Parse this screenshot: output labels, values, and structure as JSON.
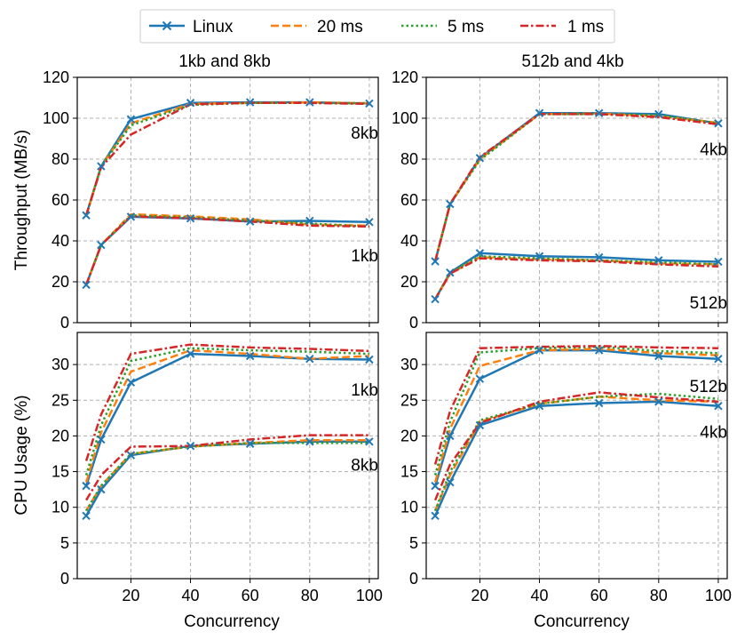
{
  "legend": [
    {
      "name": "Linux",
      "color": "#1f77b4",
      "dash": "solid",
      "marker": "x"
    },
    {
      "name": "20 ms",
      "color": "#ff7f0e",
      "dash": "dashed",
      "marker": "none"
    },
    {
      "name": "5 ms",
      "color": "#2ca02c",
      "dash": "dotted",
      "marker": "none"
    },
    {
      "name": "1 ms",
      "color": "#d62728",
      "dash": "dashdot",
      "marker": "none"
    }
  ],
  "titles": {
    "left": "1kb and 8kb",
    "right": "512b and 4kb"
  },
  "axes": {
    "xlabel": "Concurrency",
    "ylabel_top": "Throughput (MB/s)",
    "ylabel_bottom": "CPU Usage (%)",
    "xticks": [
      20,
      40,
      60,
      80,
      100
    ],
    "xlim": [
      2,
      103
    ],
    "top_ylim": [
      0,
      120
    ],
    "top_yticks": [
      0,
      20,
      40,
      60,
      80,
      100,
      120
    ],
    "bottom_ylim": [
      0,
      34.5
    ],
    "bottom_yticks": [
      0,
      5,
      10,
      15,
      20,
      25,
      30
    ]
  },
  "chart_data": [
    {
      "type": "line",
      "panel": "top-left",
      "title": "1kb and 8kb",
      "xlabel": "",
      "ylabel": "Throughput (MB/s)",
      "x": [
        5,
        10,
        20,
        40,
        60,
        80,
        100
      ],
      "ylim": [
        0,
        120
      ],
      "groups": [
        {
          "label": "8kb",
          "series": [
            {
              "name": "Linux",
              "values": [
                52.5,
                76.5,
                99.5,
                107.5,
                107.8,
                107.8,
                107.2
              ]
            },
            {
              "name": "20 ms",
              "values": [
                52.5,
                76.5,
                97.5,
                107.0,
                107.5,
                107.8,
                107.3
              ]
            },
            {
              "name": "5 ms",
              "values": [
                52.5,
                76.5,
                96.5,
                106.5,
                107.5,
                107.5,
                107.3
              ]
            },
            {
              "name": "1 ms",
              "values": [
                52.5,
                76.0,
                92.0,
                106.8,
                107.5,
                107.5,
                107.0
              ]
            }
          ]
        },
        {
          "label": "1kb",
          "series": [
            {
              "name": "Linux",
              "values": [
                18.5,
                38.0,
                51.8,
                51.0,
                49.5,
                49.8,
                49.2
              ]
            },
            {
              "name": "20 ms",
              "values": [
                18.5,
                38.0,
                53.0,
                52.0,
                50.5,
                48.0,
                47.5
              ]
            },
            {
              "name": "5 ms",
              "values": [
                18.5,
                38.0,
                52.5,
                51.5,
                50.0,
                48.5,
                47.0
              ]
            },
            {
              "name": "1 ms",
              "values": [
                18.5,
                38.0,
                52.0,
                51.0,
                49.5,
                47.5,
                47.0
              ]
            }
          ]
        }
      ],
      "annotations": [
        "8kb",
        "1kb"
      ]
    },
    {
      "type": "line",
      "panel": "top-right",
      "title": "512b and 4kb",
      "xlabel": "",
      "ylabel": "",
      "x": [
        5,
        10,
        20,
        40,
        60,
        80,
        100
      ],
      "ylim": [
        0,
        120
      ],
      "groups": [
        {
          "label": "4kb",
          "series": [
            {
              "name": "Linux",
              "values": [
                30.0,
                58.0,
                80.5,
                102.5,
                102.5,
                102.0,
                97.5
              ]
            },
            {
              "name": "20 ms",
              "values": [
                30.0,
                58.0,
                80.0,
                102.0,
                102.3,
                101.0,
                97.8
              ]
            },
            {
              "name": "5 ms",
              "values": [
                30.0,
                58.0,
                79.5,
                102.0,
                102.0,
                101.5,
                97.5
              ]
            },
            {
              "name": "1 ms",
              "values": [
                30.0,
                58.0,
                81.0,
                102.0,
                102.0,
                100.5,
                97.0
              ]
            }
          ]
        },
        {
          "label": "512b",
          "series": [
            {
              "name": "Linux",
              "values": [
                11.5,
                24.5,
                34.0,
                32.5,
                32.0,
                30.5,
                29.8
              ]
            },
            {
              "name": "20 ms",
              "values": [
                11.5,
                24.0,
                32.0,
                31.0,
                30.5,
                29.0,
                28.5
              ]
            },
            {
              "name": "5 ms",
              "values": [
                11.5,
                24.5,
                32.5,
                31.5,
                30.5,
                29.5,
                28.5
              ]
            },
            {
              "name": "1 ms",
              "values": [
                11.5,
                24.0,
                31.5,
                30.5,
                30.0,
                28.5,
                27.5
              ]
            }
          ]
        }
      ],
      "annotations": [
        "4kb",
        "512b"
      ]
    },
    {
      "type": "line",
      "panel": "bottom-left",
      "title": "",
      "xlabel": "Concurrency",
      "ylabel": "CPU Usage (%)",
      "x": [
        5,
        10,
        20,
        40,
        60,
        80,
        100
      ],
      "ylim": [
        0,
        34.5
      ],
      "groups": [
        {
          "label": "1kb",
          "series": [
            {
              "name": "Linux",
              "values": [
                13.0,
                19.5,
                27.5,
                31.5,
                31.2,
                30.8,
                30.7
              ]
            },
            {
              "name": "20 ms",
              "values": [
                13.5,
                20.5,
                29.0,
                32.0,
                31.5,
                30.8,
                31.2
              ]
            },
            {
              "name": "5 ms",
              "values": [
                14.5,
                21.5,
                30.5,
                32.3,
                32.0,
                31.8,
                31.5
              ]
            },
            {
              "name": "1 ms",
              "values": [
                16.5,
                23.0,
                31.5,
                32.8,
                32.4,
                32.2,
                31.9
              ]
            }
          ]
        },
        {
          "label": "8kb",
          "series": [
            {
              "name": "Linux",
              "values": [
                8.8,
                12.5,
                17.3,
                18.6,
                18.9,
                19.2,
                19.2
              ]
            },
            {
              "name": "20 ms",
              "values": [
                9.5,
                13.0,
                17.5,
                18.5,
                19.0,
                19.4,
                19.4
              ]
            },
            {
              "name": "5 ms",
              "values": [
                9.5,
                13.0,
                17.5,
                18.5,
                19.0,
                19.0,
                19.0
              ]
            },
            {
              "name": "1 ms",
              "values": [
                11.0,
                14.5,
                18.5,
                18.6,
                19.5,
                20.1,
                20.1
              ]
            }
          ]
        }
      ],
      "annotations": [
        "1kb",
        "8kb"
      ]
    },
    {
      "type": "line",
      "panel": "bottom-right",
      "title": "",
      "xlabel": "Concurrency",
      "ylabel": "",
      "x": [
        5,
        10,
        20,
        40,
        60,
        80,
        100
      ],
      "ylim": [
        0,
        34.5
      ],
      "groups": [
        {
          "label": "512b",
          "series": [
            {
              "name": "Linux",
              "values": [
                13.0,
                20.0,
                28.0,
                32.0,
                32.0,
                31.2,
                30.8
              ]
            },
            {
              "name": "20 ms",
              "values": [
                13.5,
                21.0,
                29.8,
                32.0,
                32.2,
                31.6,
                31.3
              ]
            },
            {
              "name": "5 ms",
              "values": [
                14.5,
                22.0,
                31.7,
                32.3,
                32.5,
                31.9,
                31.6
              ]
            },
            {
              "name": "1 ms",
              "values": [
                16.0,
                23.5,
                32.3,
                32.5,
                32.6,
                32.4,
                32.3
              ]
            }
          ]
        },
        {
          "label": "4kb",
          "series": [
            {
              "name": "Linux",
              "values": [
                8.8,
                13.5,
                21.5,
                24.2,
                24.6,
                24.8,
                24.2
              ]
            },
            {
              "name": "20 ms",
              "values": [
                9.5,
                14.5,
                22.0,
                24.5,
                25.5,
                25.0,
                24.8
              ]
            },
            {
              "name": "5 ms",
              "values": [
                9.5,
                15.0,
                22.2,
                24.5,
                25.5,
                25.9,
                25.2
              ]
            },
            {
              "name": "1 ms",
              "values": [
                11.0,
                16.0,
                21.8,
                24.8,
                26.1,
                25.4,
                24.8
              ]
            }
          ]
        }
      ],
      "annotations": [
        "512b",
        "4kb"
      ]
    }
  ]
}
